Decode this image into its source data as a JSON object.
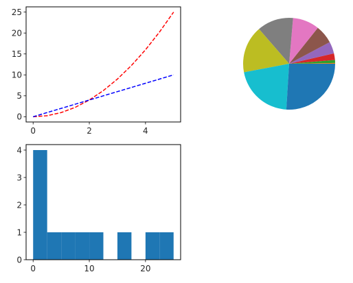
{
  "chart_data": [
    {
      "type": "line",
      "title": "",
      "xlabel": "",
      "ylabel": "",
      "xlim": [
        -0.25,
        5.25
      ],
      "ylim": [
        -1.25,
        26.25
      ],
      "xticks": [
        0,
        2,
        4
      ],
      "yticks": [
        0,
        5,
        10,
        15,
        20,
        25
      ],
      "x": [
        0,
        0.5,
        1,
        1.5,
        2,
        2.5,
        3,
        3.5,
        4,
        4.5,
        5
      ],
      "series": [
        {
          "values": [
            0,
            0.25,
            1,
            2.25,
            4,
            6.25,
            9,
            12.25,
            16,
            20.25,
            25
          ],
          "color": "#ff0000",
          "style": "dashed"
        },
        {
          "values": [
            0,
            1,
            2,
            3,
            4,
            5,
            6,
            7,
            8,
            9,
            10
          ],
          "color": "#0000ff",
          "style": "dashed"
        }
      ],
      "grid": false
    },
    {
      "type": "pie",
      "title": "",
      "start_angle_deg": 0,
      "direction": "counterclockwise",
      "slices": [
        {
          "value": 0,
          "color": "#1f77b4"
        },
        {
          "value": 1,
          "color": "#ff7f0e"
        },
        {
          "value": 4,
          "color": "#2ca02c"
        },
        {
          "value": 9,
          "color": "#d62728"
        },
        {
          "value": 16,
          "color": "#9467bd"
        },
        {
          "value": 25,
          "color": "#8c564b"
        },
        {
          "value": 36,
          "color": "#e377c2"
        },
        {
          "value": 49,
          "color": "#7f7f7f"
        },
        {
          "value": 64,
          "color": "#bcbd22"
        },
        {
          "value": 81,
          "color": "#17becf"
        },
        {
          "value": 100,
          "color": "#1f77b4"
        }
      ]
    },
    {
      "type": "bar",
      "subtype": "histogram",
      "title": "",
      "xlabel": "",
      "ylabel": "",
      "xlim": [
        -1.25,
        26.25
      ],
      "ylim": [
        0,
        4.2
      ],
      "xticks": [
        0,
        10,
        20
      ],
      "yticks": [
        0,
        1,
        2,
        3,
        4
      ],
      "bin_edges": [
        0,
        2.5,
        5,
        7.5,
        10,
        12.5,
        15,
        17.5,
        20,
        22.5,
        25
      ],
      "values": [
        4,
        1,
        1,
        1,
        1,
        0,
        1,
        0,
        1,
        1
      ],
      "color": "#1f77b4",
      "grid": false
    }
  ]
}
